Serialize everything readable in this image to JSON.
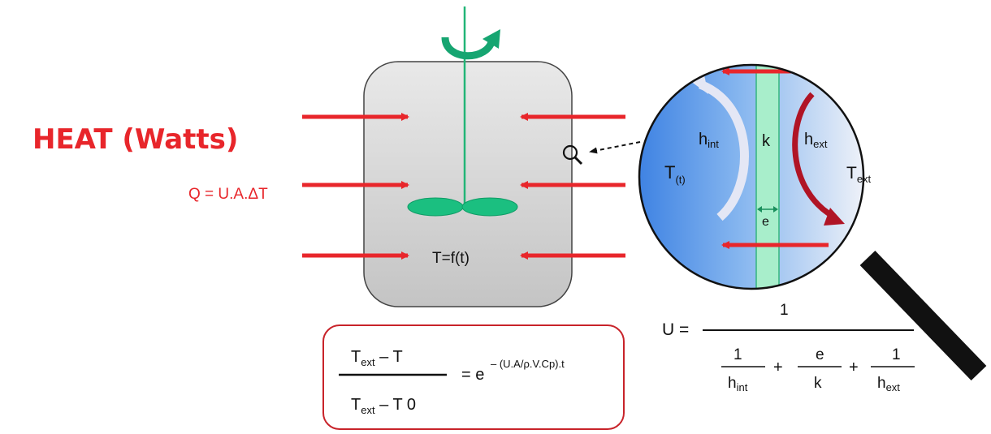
{
  "heat": {
    "title": "HEAT (Watts)",
    "formula": "Q = U.A.ΔT"
  },
  "reactor": {
    "temperature_label": "T=f(t)"
  },
  "wall": {
    "inner_coeff": "h",
    "inner_coeff_sub": "int",
    "conductivity": "k",
    "outer_coeff": "h",
    "outer_coeff_sub": "ext",
    "inner_temp": "T",
    "inner_temp_sub": "(t)",
    "outer_temp": "T",
    "outer_temp_sub": "ext",
    "thickness": "e"
  },
  "formula_box": {
    "numerator_symbol": "T",
    "numerator_sub": "ext",
    "numerator_rest": " – T",
    "denominator_symbol": "T",
    "denominator_sub": "ext",
    "denominator_rest": " – T 0",
    "equals": "= e",
    "exponent": "– (U.A/ρ.V.Cp).t"
  },
  "u_formula": {
    "lhs": "U =",
    "numerator": "1",
    "t1_num": "1",
    "t1_den": "h",
    "t1_den_sub": "int",
    "plus1": "+",
    "t2_num": "e",
    "t2_den": "k",
    "plus2": "+",
    "t3_num": "1",
    "t3_den": "h",
    "t3_den_sub": "ext"
  },
  "colors": {
    "heat_red": "#e8262b",
    "shaft_green": "#22b577",
    "paddle_green": "#1bbf80",
    "wall_green": "#a8eecb",
    "lens_blue": "#5b96e8"
  }
}
